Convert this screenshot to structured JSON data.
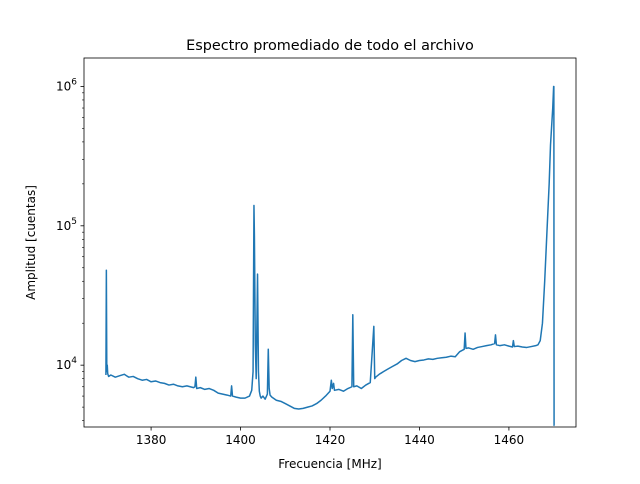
{
  "chart_data": {
    "type": "line",
    "title": "Espectro promediado de todo el archivo",
    "xlabel": "Frecuencia [MHz]",
    "ylabel": "Amplitud [cuentas]",
    "xlim": [
      1365.0,
      1475.0
    ],
    "ylim": [
      3600,
      1600000
    ],
    "yscale": "log",
    "grid": false,
    "x_ticks": [
      {
        "value": 1380,
        "label": "1380"
      },
      {
        "value": 1400,
        "label": "1400"
      },
      {
        "value": 1420,
        "label": "1420"
      },
      {
        "value": 1440,
        "label": "1440"
      },
      {
        "value": 1460,
        "label": "1460"
      }
    ],
    "y_ticks": [
      {
        "value": 10000,
        "base": "10",
        "exp": "4"
      },
      {
        "value": 100000,
        "base": "10",
        "exp": "5"
      },
      {
        "value": 1000000,
        "base": "10",
        "exp": "6"
      }
    ],
    "colors": {
      "line": "#1f77b4",
      "axes": "#000000",
      "background": "#ffffff"
    },
    "series": [
      {
        "x": [
          1369.9,
          1370.0,
          1370.1,
          1370.2,
          1370.3,
          1370.5,
          1371.0,
          1372.0,
          1373.0,
          1374.0,
          1375.0,
          1376.0,
          1377.0,
          1378.0,
          1379.0,
          1380.0,
          1381.0,
          1382.0,
          1383.0,
          1384.0,
          1385.0,
          1386.0,
          1387.0,
          1388.0,
          1389.5,
          1389.8,
          1390.0,
          1390.2,
          1391.0,
          1392.0,
          1393.0,
          1394.0,
          1395.0,
          1396.0,
          1397.0,
          1397.8,
          1398.0,
          1398.2,
          1399.0,
          1400.0,
          1401.0,
          1402.0,
          1402.5,
          1402.8,
          1403.0,
          1403.1,
          1403.3,
          1403.5,
          1403.8,
          1404.0,
          1404.2,
          1404.4,
          1404.6,
          1405.0,
          1405.5,
          1406.0,
          1406.2,
          1406.4,
          1406.6,
          1407.0,
          1408.0,
          1409.0,
          1410.0,
          1411.0,
          1412.0,
          1413.0,
          1414.0,
          1415.0,
          1416.0,
          1417.0,
          1418.0,
          1419.0,
          1420.0,
          1420.3,
          1420.5,
          1420.8,
          1421.0,
          1422.0,
          1423.0,
          1424.0,
          1424.9,
          1425.1,
          1425.3,
          1426.0,
          1427.0,
          1428.0,
          1429.0,
          1429.8,
          1430.0,
          1430.2,
          1431.0,
          1432.0,
          1433.0,
          1434.0,
          1435.0,
          1436.0,
          1437.0,
          1438.0,
          1439.0,
          1440.0,
          1441.0,
          1442.0,
          1443.0,
          1444.0,
          1445.0,
          1446.0,
          1447.0,
          1448.0,
          1449.0,
          1450.0,
          1450.2,
          1450.4,
          1451.0,
          1452.0,
          1453.0,
          1454.0,
          1455.0,
          1456.0,
          1456.8,
          1457.0,
          1457.2,
          1458.0,
          1459.0,
          1460.0,
          1460.8,
          1461.0,
          1461.2,
          1462.0,
          1463.0,
          1464.0,
          1465.0,
          1466.0,
          1466.5,
          1467.0,
          1467.5,
          1468.0,
          1468.5,
          1469.0,
          1469.3,
          1469.6,
          1469.8,
          1470.0,
          1470.05,
          1470.1,
          1470.2
        ],
        "y": [
          8500,
          48000,
          9000,
          10000,
          8700,
          8300,
          8500,
          8200,
          8400,
          8600,
          8200,
          8300,
          8000,
          7800,
          7900,
          7600,
          7700,
          7500,
          7400,
          7200,
          7300,
          7100,
          7000,
          7100,
          6900,
          7000,
          8200,
          6800,
          6900,
          6700,
          6800,
          6600,
          6300,
          6200,
          6100,
          6000,
          7100,
          6000,
          5900,
          5800,
          5800,
          6000,
          6600,
          9000,
          140000,
          85000,
          14000,
          8000,
          45000,
          9000,
          6500,
          6000,
          5800,
          6000,
          5700,
          6200,
          13000,
          6800,
          6100,
          5900,
          5600,
          5500,
          5300,
          5100,
          4900,
          4850,
          4900,
          5000,
          5100,
          5300,
          5600,
          6000,
          6500,
          7800,
          6800,
          7400,
          6600,
          6700,
          6500,
          6800,
          7000,
          23000,
          7000,
          7100,
          6800,
          7200,
          7500,
          19000,
          8000,
          8200,
          8600,
          9000,
          9400,
          9800,
          10200,
          10800,
          11200,
          10800,
          10600,
          10800,
          10900,
          11100,
          11000,
          11200,
          11300,
          11400,
          11600,
          11500,
          12500,
          13000,
          17000,
          13200,
          13300,
          13000,
          13400,
          13600,
          13800,
          14000,
          14300,
          16500,
          14000,
          13800,
          14000,
          13700,
          13500,
          15000,
          13600,
          13700,
          13500,
          13400,
          13600,
          13800,
          14000,
          15000,
          20000,
          40000,
          90000,
          200000,
          380000,
          550000,
          700000,
          1000000,
          1000000,
          3700,
          3700
        ]
      }
    ]
  }
}
